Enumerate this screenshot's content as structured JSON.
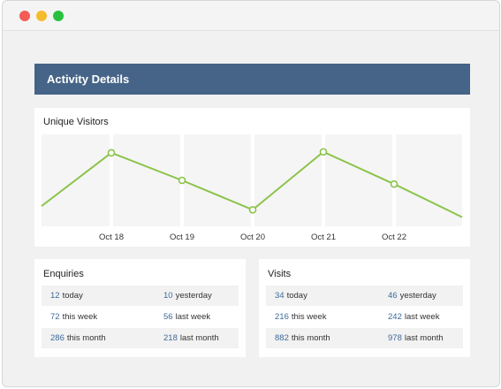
{
  "window": {
    "controls": [
      "close",
      "minimize",
      "maximize"
    ]
  },
  "header": {
    "title": "Activity Details"
  },
  "chart_data": {
    "type": "line",
    "title": "Unique Visitors",
    "categories": [
      "Oct 18",
      "Oct 19",
      "Oct 20",
      "Oct 21",
      "Oct 22"
    ],
    "x": [
      "Oct 18",
      "Oct 19",
      "Oct 20",
      "Oct 21",
      "Oct 22"
    ],
    "values": [
      80,
      50,
      18,
      81,
      46
    ],
    "series": [
      {
        "values": [
          80,
          50,
          18,
          81,
          46
        ]
      }
    ],
    "line_start": 22,
    "line_end": 10,
    "ylim": [
      0,
      100
    ],
    "grid": true,
    "line_color": "#8bc34a",
    "background": "#f5f5f5"
  },
  "enquiries": {
    "title": "Enquiries",
    "rows": [
      [
        {
          "value": "12",
          "label": "today"
        },
        {
          "value": "10",
          "label": "yesterday"
        }
      ],
      [
        {
          "value": "72",
          "label": "this week"
        },
        {
          "value": "56",
          "label": "last week"
        }
      ],
      [
        {
          "value": "286",
          "label": "this month"
        },
        {
          "value": "218",
          "label": "last month"
        }
      ]
    ]
  },
  "visits": {
    "title": "Visits",
    "rows": [
      [
        {
          "value": "34",
          "label": "today"
        },
        {
          "value": "46",
          "label": "yesterday"
        }
      ],
      [
        {
          "value": "216",
          "label": "this week"
        },
        {
          "value": "242",
          "label": "last week"
        }
      ],
      [
        {
          "value": "882",
          "label": "this month"
        },
        {
          "value": "978",
          "label": "last month"
        }
      ]
    ]
  },
  "colors": {
    "header": "#456487",
    "accent_number": "#3d6a9a",
    "line": "#8bc34a"
  }
}
